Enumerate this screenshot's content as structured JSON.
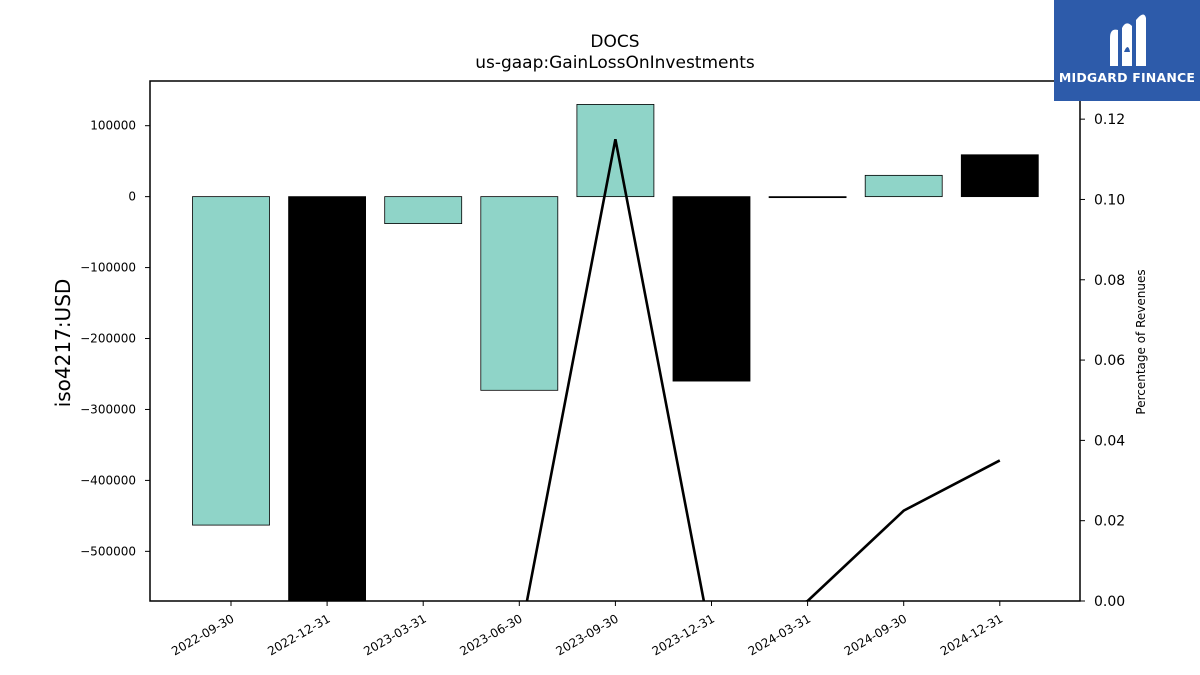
{
  "logo": {
    "brand_text": "MIDGARD FINANCE",
    "color": "#2d5baa"
  },
  "chart_data": {
    "type": "bar",
    "title": "DOCS",
    "subtitle": "us-gaap:GainLossOnInvestments",
    "ylabel": "iso4217:USD",
    "y2label": "Percentage of Revenues",
    "categories": [
      "2022-09-30",
      "2022-12-31",
      "2023-03-31",
      "2023-06-30",
      "2023-09-30",
      "2023-12-31",
      "2024-03-31",
      "2024-09-30",
      "2024-12-31"
    ],
    "values": [
      -463000,
      -570000,
      -38000,
      -273000,
      130000,
      -260000,
      -1000,
      30000,
      59000
    ],
    "bar_colors": [
      "#8fd4c8",
      "#000000",
      "#8fd4c8",
      "#8fd4c8",
      "#8fd4c8",
      "#000000",
      "#000000",
      "#8fd4c8",
      "#000000"
    ],
    "ylim": [
      -570000,
      163000
    ],
    "yticks": [
      100000,
      0,
      -100000,
      -200000,
      -300000,
      -400000,
      -500000
    ],
    "ytick_labels": [
      "100000",
      "0",
      "−100000",
      "−200000",
      "−300000",
      "−400000",
      "−500000"
    ],
    "line": {
      "name": "Percentage of Revenues",
      "values": [
        null,
        null,
        null,
        null,
        0.115,
        null,
        0.0,
        0.0225,
        0.035
      ],
      "color": "#000000"
    },
    "y2lim": [
      0.0,
      0.1295
    ],
    "y2ticks": [
      0.12,
      0.1,
      0.08,
      0.06,
      0.04,
      0.02,
      0.0
    ],
    "y2tick_labels": [
      "0.12",
      "0.10",
      "0.08",
      "0.06",
      "0.04",
      "0.02",
      "0.00"
    ],
    "grid": false
  }
}
